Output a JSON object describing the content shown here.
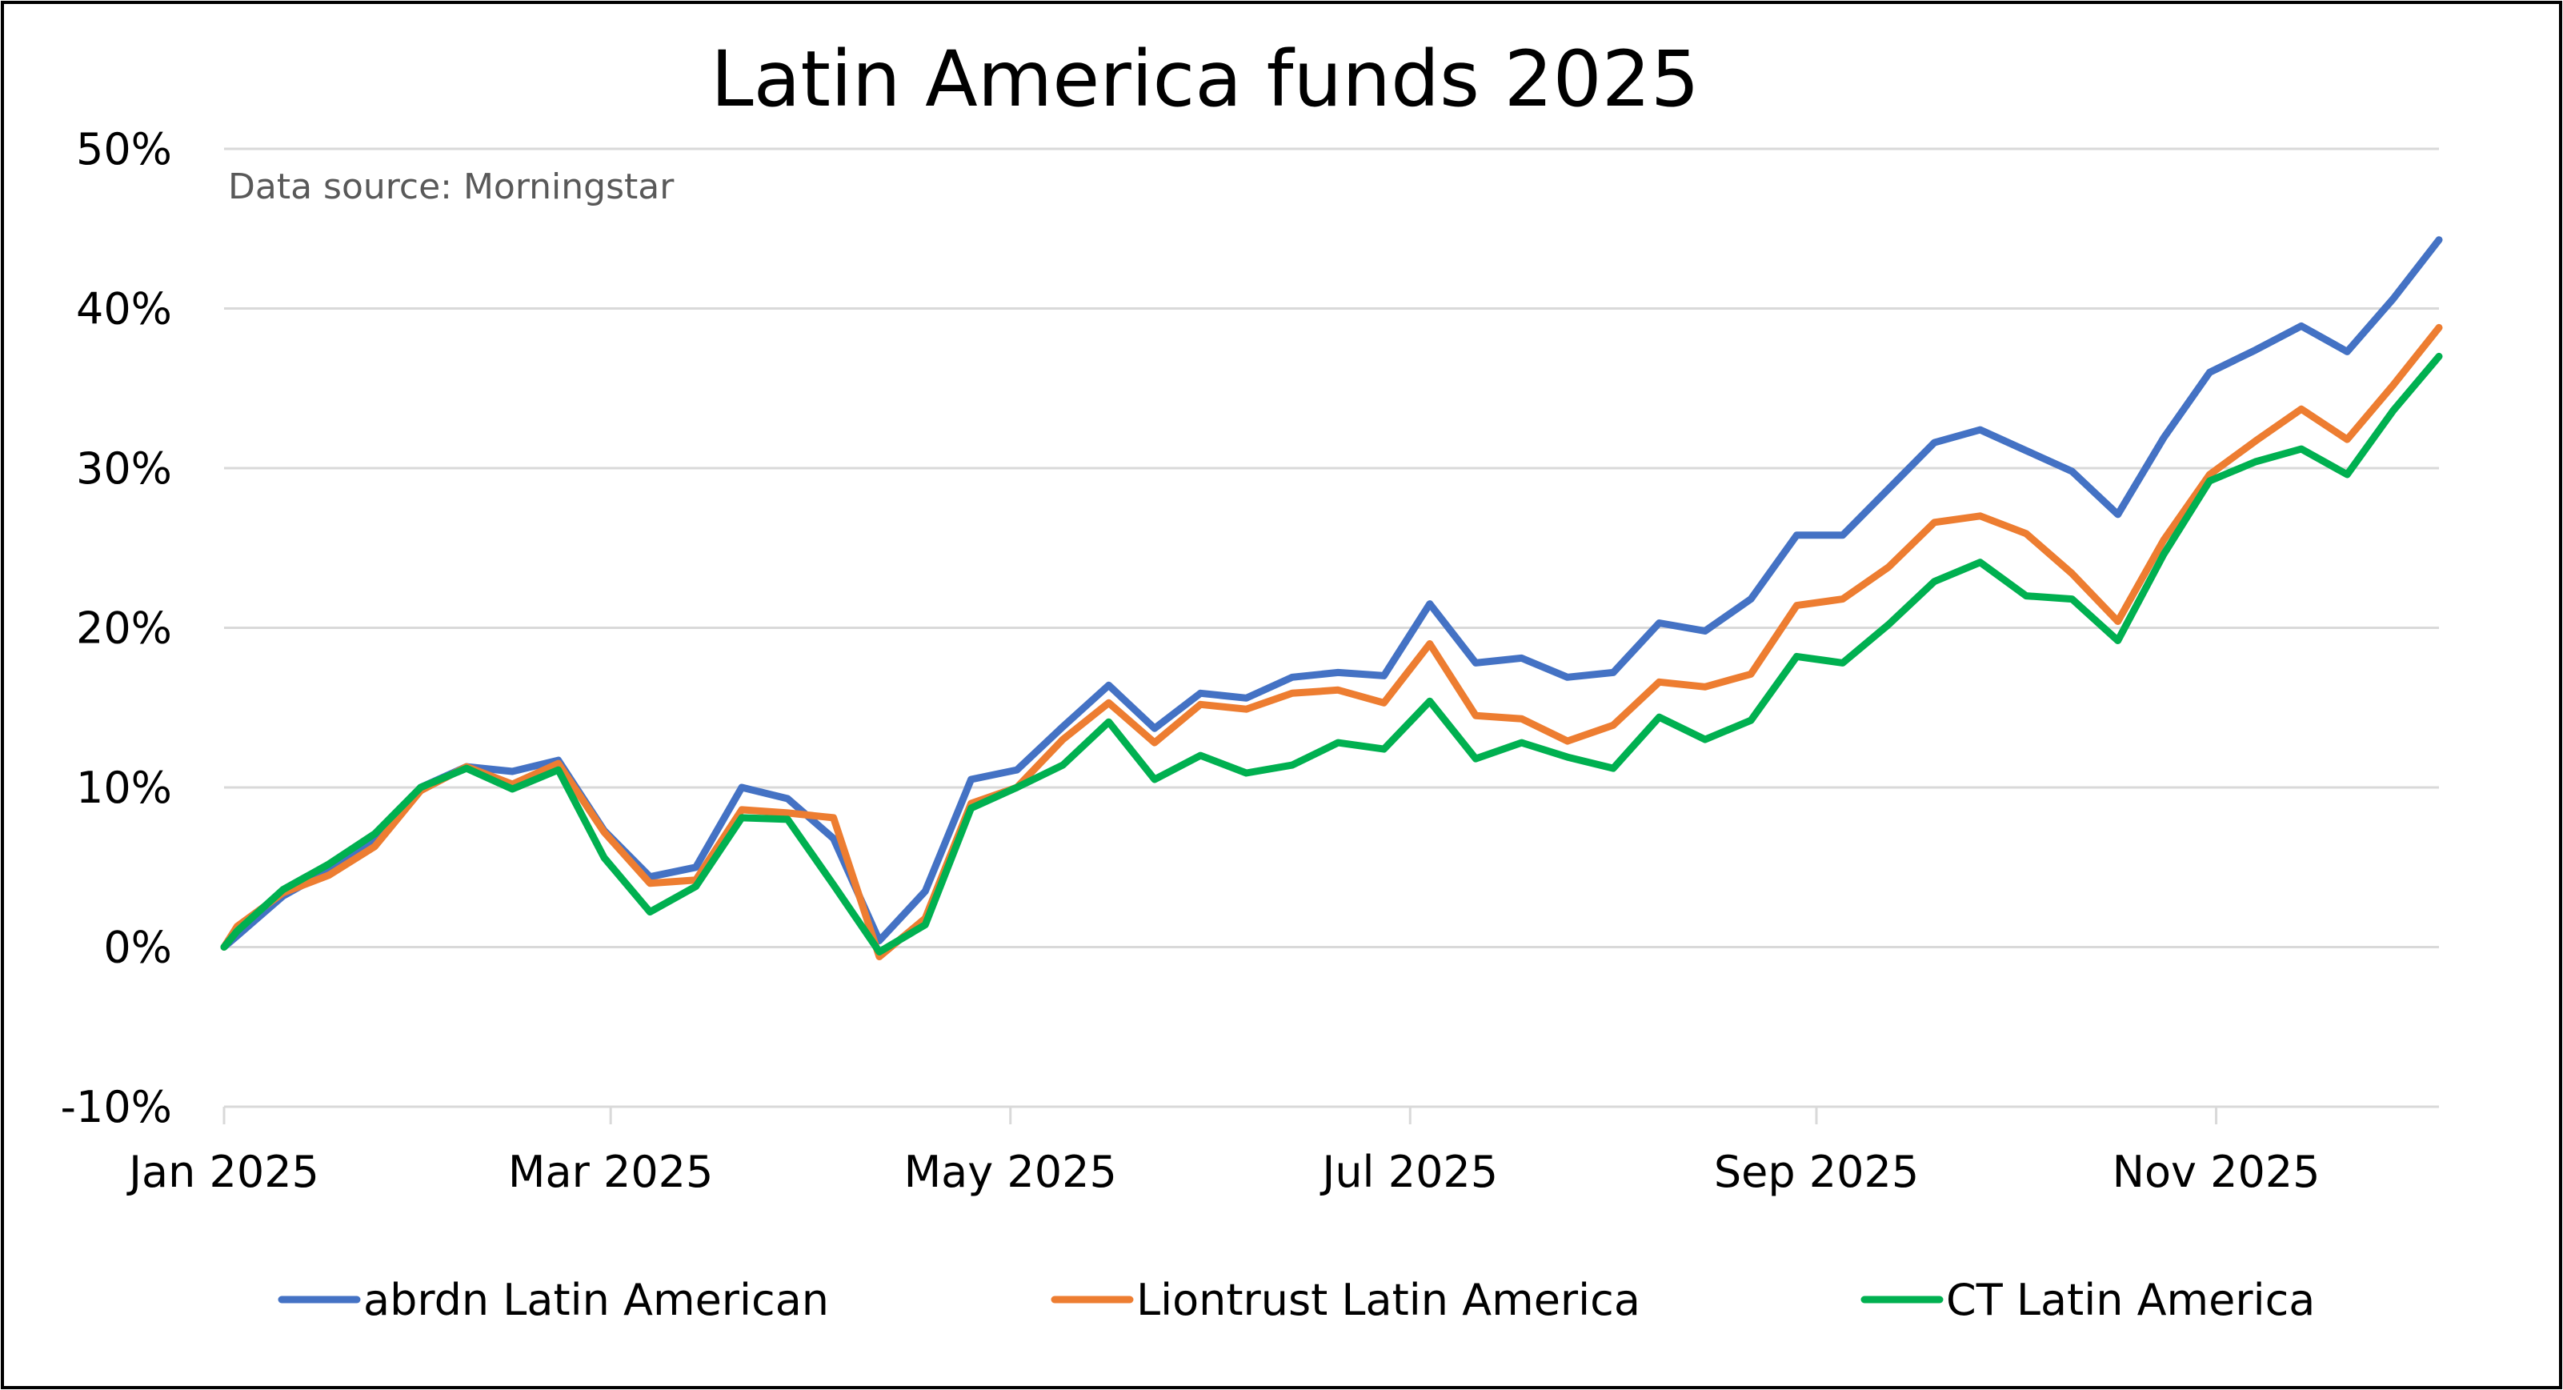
{
  "chart_data": {
    "type": "line",
    "title": "Latin America funds 2025",
    "subtitle": "Data source: Morningstar",
    "xlabel": "",
    "ylabel": "",
    "x": [
      "2025-01-01",
      "2025-01-03",
      "2025-01-10",
      "2025-01-17",
      "2025-01-24",
      "2025-01-31",
      "2025-02-07",
      "2025-02-14",
      "2025-02-21",
      "2025-02-28",
      "2025-03-07",
      "2025-03-14",
      "2025-03-21",
      "2025-03-28",
      "2025-04-04",
      "2025-04-11",
      "2025-04-18",
      "2025-04-25",
      "2025-05-02",
      "2025-05-09",
      "2025-05-16",
      "2025-05-23",
      "2025-05-30",
      "2025-06-06",
      "2025-06-13",
      "2025-06-20",
      "2025-06-27",
      "2025-07-04",
      "2025-07-11",
      "2025-07-18",
      "2025-07-25",
      "2025-08-01",
      "2025-08-08",
      "2025-08-15",
      "2025-08-22",
      "2025-08-29",
      "2025-09-05",
      "2025-09-12",
      "2025-09-19",
      "2025-09-26",
      "2025-10-03",
      "2025-10-10",
      "2025-10-17",
      "2025-10-24",
      "2025-10-31",
      "2025-11-07",
      "2025-11-14",
      "2025-11-21",
      "2025-11-28",
      "2025-12-05"
    ],
    "xlim": [
      "2025-01-01",
      "2025-12-05"
    ],
    "x_ticks": [
      {
        "label": "Jan 2025",
        "date": "2025-01-01"
      },
      {
        "label": "Mar 2025",
        "date": "2025-03-01"
      },
      {
        "label": "May 2025",
        "date": "2025-05-01"
      },
      {
        "label": "Jul 2025",
        "date": "2025-07-01"
      },
      {
        "label": "Sep 2025",
        "date": "2025-09-01"
      },
      {
        "label": "Nov 2025",
        "date": "2025-11-01"
      }
    ],
    "ylim": [
      -10,
      50
    ],
    "y_ticks": [
      {
        "label": "-10%",
        "value": -10
      },
      {
        "label": "0%",
        "value": 0
      },
      {
        "label": "10%",
        "value": 10
      },
      {
        "label": "20%",
        "value": 20
      },
      {
        "label": "30%",
        "value": 30
      },
      {
        "label": "40%",
        "value": 40
      },
      {
        "label": "50%",
        "value": 50
      }
    ],
    "grid": true,
    "legend": "bottom",
    "series": [
      {
        "name": "abrdn Latin American",
        "color": "#4472C4",
        "values": [
          0,
          0.7,
          3.2,
          4.8,
          6.8,
          10.0,
          11.3,
          11.0,
          11.7,
          7.3,
          4.4,
          5.0,
          10.0,
          9.3,
          6.8,
          0.4,
          3.5,
          10.5,
          11.1,
          13.8,
          16.4,
          13.7,
          15.9,
          15.6,
          16.9,
          17.2,
          17.0,
          21.5,
          17.8,
          18.1,
          16.9,
          17.2,
          20.3,
          19.8,
          21.8,
          25.8,
          25.8,
          28.7,
          31.6,
          32.4,
          31.1,
          29.8,
          27.1,
          31.9,
          36.0,
          37.4,
          38.9,
          37.3,
          40.6,
          44.3
        ]
      },
      {
        "name": "Liontrust Latin America",
        "color": "#ED7D31",
        "values": [
          0,
          1.3,
          3.4,
          4.5,
          6.3,
          9.8,
          11.3,
          10.2,
          11.5,
          7.2,
          4.0,
          4.2,
          8.6,
          8.4,
          8.1,
          -0.6,
          1.8,
          9.0,
          10.0,
          13.0,
          15.3,
          12.8,
          15.2,
          14.9,
          15.9,
          16.1,
          15.3,
          19.0,
          14.5,
          14.3,
          12.9,
          13.9,
          16.6,
          16.3,
          17.1,
          21.4,
          21.8,
          23.8,
          26.6,
          27.0,
          25.9,
          23.4,
          20.4,
          25.5,
          29.6,
          31.7,
          33.7,
          31.8,
          35.2,
          38.8
        ]
      },
      {
        "name": "CT Latin America",
        "color": "#00B050",
        "values": [
          0,
          1.0,
          3.6,
          5.2,
          7.1,
          10.0,
          11.2,
          9.9,
          11.1,
          5.6,
          2.2,
          3.8,
          8.1,
          8.0,
          3.9,
          -0.3,
          1.4,
          8.7,
          10.0,
          11.4,
          14.1,
          10.5,
          12.0,
          10.9,
          11.4,
          12.8,
          12.4,
          15.4,
          11.8,
          12.8,
          11.9,
          11.2,
          14.4,
          13.0,
          14.2,
          18.2,
          17.8,
          20.2,
          22.9,
          24.1,
          22.0,
          21.8,
          19.2,
          24.6,
          29.2,
          30.4,
          31.2,
          29.6,
          33.6,
          37.0
        ]
      }
    ]
  }
}
